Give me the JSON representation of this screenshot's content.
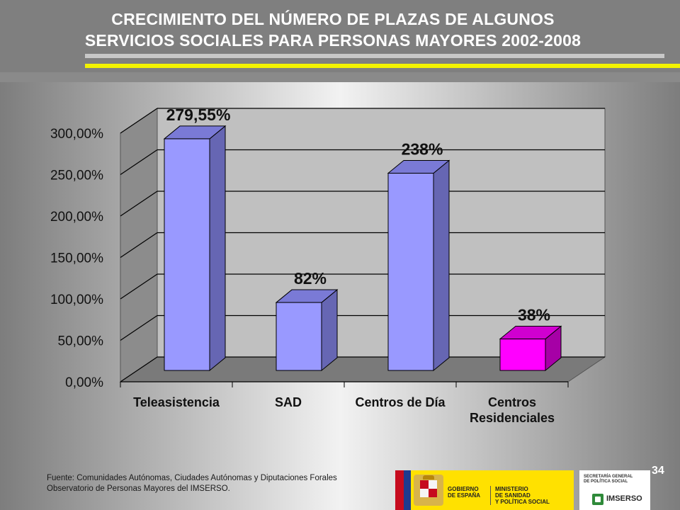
{
  "slide": {
    "title_line1": "CRECIMIENTO DEL NÚMERO DE PLAZAS DE ALGUNOS",
    "title_line2": "SERVICIOS SOCIALES PARA PERSONAS MAYORES 2002-2008",
    "source_line1": "Fuente: Comunidades Autónomas, Ciudades Autónomas y Diputaciones Forales",
    "source_line2": "Observatorio de Personas Mayores del IMSERSO.",
    "page_number": "34"
  },
  "logos": {
    "gobierno_line1": "GOBIERNO",
    "gobierno_line2": "DE ESPAÑA",
    "ministerio_line1": "MINISTERIO",
    "ministerio_line2": "DE SANIDAD",
    "ministerio_line3": "Y POLÍTICA SOCIAL",
    "secretaria_line1": "SECRETARÍA GENERAL",
    "secretaria_line2": "DE POLÍTICA SOCIAL",
    "imserso": "IMSERSO"
  },
  "colors": {
    "bar_blue": "#9999ff",
    "bar_blue_side": "#6666b3",
    "bar_blue_top": "#7a7ad6",
    "bar_magenta": "#ff00ff",
    "bar_magenta_side": "#a600a6",
    "bar_magenta_top": "#d000d0",
    "title_bar": "#7f7f7f",
    "accent_yellow": "#f2f200"
  },
  "chart_data": {
    "type": "bar",
    "style": "3d",
    "categories": [
      "Teleasistencia",
      "SAD",
      "Centros de Día",
      "Centros Residenciales"
    ],
    "category_lines": [
      [
        "Teleasistencia"
      ],
      [
        "SAD"
      ],
      [
        "Centros de Día"
      ],
      [
        "Centros",
        "Residenciales"
      ]
    ],
    "values": [
      279.55,
      82,
      238,
      38
    ],
    "data_labels": [
      "279,55%",
      "82%",
      "238%",
      "38%"
    ],
    "bar_colors": [
      "blue",
      "blue",
      "blue",
      "magenta"
    ],
    "ylim": [
      0,
      300
    ],
    "yticks": [
      0,
      50,
      100,
      150,
      200,
      250,
      300
    ],
    "ytick_labels": [
      "0,00%",
      "50,00%",
      "100,00%",
      "150,00%",
      "200,00%",
      "250,00%",
      "300,00%"
    ],
    "grid": true
  }
}
